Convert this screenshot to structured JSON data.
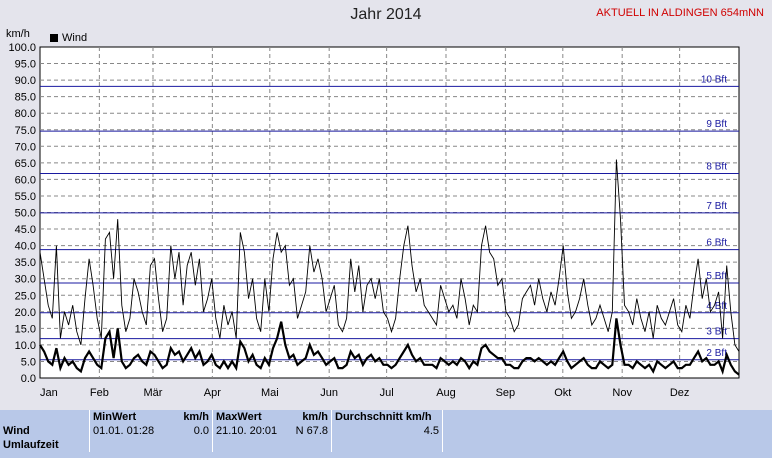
{
  "header": {
    "title": "Jahr 2014",
    "station": "AKTUELL IN ALDINGEN 654mNN",
    "unit": "km/h"
  },
  "chart_data": {
    "type": "line",
    "title": "Jahr 2014",
    "ylabel": "km/h",
    "ylim": [
      0,
      100
    ],
    "y_ticks": [
      "0.0",
      "5.0",
      "10.0",
      "15.0",
      "20.0",
      "25.0",
      "30.0",
      "35.0",
      "40.0",
      "45.0",
      "50.0",
      "55.0",
      "60.0",
      "65.0",
      "70.0",
      "75.0",
      "80.0",
      "85.0",
      "90.0",
      "95.0",
      "100.0"
    ],
    "months": [
      "Jan",
      "Feb",
      "Mär",
      "Apr",
      "Mai",
      "Jun",
      "Jul",
      "Aug",
      "Sep",
      "Okt",
      "Nov",
      "Dez"
    ],
    "grid": true,
    "legend": "top-left",
    "beaufort_lines": [
      {
        "label": "2 Bft",
        "value": 5.5
      },
      {
        "label": "3 Bft",
        "value": 11.9
      },
      {
        "label": "4 Bft",
        "value": 19.7
      },
      {
        "label": "5 Bft",
        "value": 28.7
      },
      {
        "label": "6 Bft",
        "value": 38.8
      },
      {
        "label": "7 Bft",
        "value": 49.9
      },
      {
        "label": "8 Bft",
        "value": 61.8
      },
      {
        "label": "9 Bft",
        "value": 74.6
      },
      {
        "label": "10 Bft",
        "value": 88.1
      }
    ],
    "series": [
      {
        "name": "Wind",
        "style": "thin",
        "values": [
          38,
          30,
          22,
          18,
          40,
          12,
          20,
          16,
          22,
          14,
          10,
          24,
          36,
          28,
          18,
          12,
          42,
          44,
          30,
          48,
          22,
          14,
          18,
          30,
          26,
          20,
          16,
          34,
          36,
          24,
          14,
          18,
          40,
          30,
          38,
          22,
          34,
          38,
          28,
          36,
          20,
          24,
          30,
          18,
          12,
          22,
          16,
          20,
          12,
          44,
          38,
          24,
          30,
          18,
          14,
          30,
          20,
          36,
          44,
          38,
          40,
          28,
          30,
          18,
          22,
          26,
          40,
          32,
          36,
          30,
          20,
          24,
          28,
          16,
          14,
          18,
          36,
          26,
          34,
          20,
          28,
          30,
          24,
          30,
          20,
          18,
          14,
          18,
          30,
          40,
          46,
          34,
          26,
          30,
          22,
          20,
          18,
          16,
          28,
          24,
          20,
          22,
          18,
          30,
          24,
          16,
          22,
          20,
          40,
          46,
          38,
          36,
          28,
          30,
          20,
          18,
          14,
          16,
          24,
          26,
          28,
          22,
          30,
          24,
          20,
          26,
          22,
          30,
          40,
          26,
          18,
          20,
          24,
          30,
          22,
          16,
          18,
          22,
          18,
          14,
          20,
          66,
          48,
          22,
          20,
          16,
          24,
          18,
          14,
          20,
          12,
          22,
          18,
          16,
          20,
          24,
          16,
          14,
          22,
          18,
          28,
          36,
          24,
          30,
          20,
          22,
          26,
          12,
          34,
          20,
          10,
          8
        ]
      },
      {
        "name": "Wind",
        "style": "thick",
        "values": [
          10,
          8,
          5,
          4,
          9,
          3,
          6,
          4,
          5,
          3,
          2,
          6,
          8,
          6,
          4,
          3,
          12,
          14,
          6,
          15,
          5,
          3,
          4,
          6,
          7,
          5,
          4,
          8,
          7,
          5,
          3,
          4,
          9,
          7,
          8,
          5,
          7,
          9,
          6,
          8,
          4,
          5,
          7,
          4,
          3,
          5,
          3,
          5,
          3,
          11,
          9,
          5,
          7,
          4,
          3,
          6,
          4,
          9,
          12,
          17,
          10,
          6,
          7,
          4,
          5,
          6,
          10,
          7,
          8,
          6,
          4,
          5,
          6,
          3,
          3,
          4,
          8,
          6,
          7,
          4,
          6,
          7,
          5,
          6,
          4,
          4,
          3,
          4,
          6,
          8,
          10,
          7,
          5,
          6,
          4,
          4,
          4,
          3,
          6,
          5,
          4,
          5,
          4,
          6,
          5,
          3,
          5,
          4,
          9,
          10,
          8,
          7,
          6,
          6,
          4,
          4,
          3,
          3,
          5,
          6,
          6,
          5,
          6,
          5,
          4,
          5,
          4,
          6,
          8,
          5,
          3,
          4,
          5,
          6,
          4,
          3,
          3,
          5,
          4,
          3,
          4,
          18,
          10,
          4,
          4,
          3,
          5,
          4,
          3,
          4,
          2,
          5,
          4,
          3,
          4,
          5,
          3,
          3,
          4,
          4,
          6,
          8,
          5,
          6,
          4,
          4,
          5,
          2,
          7,
          4,
          2,
          1
        ]
      }
    ]
  },
  "stats": {
    "headers": {
      "min": "MinWert",
      "min_unit": "km/h",
      "max": "MaxWert",
      "max_unit": "km/h",
      "avg": "Durchschnitt km/h"
    },
    "row": {
      "label": "Wind",
      "min_time": "01.01.  01:28",
      "min_value": "0.0",
      "max_time": "21.10.  20:01",
      "max_value": "N 67.8",
      "avg_value": "4.5"
    },
    "next_row_label": "Umlaufzeit"
  }
}
